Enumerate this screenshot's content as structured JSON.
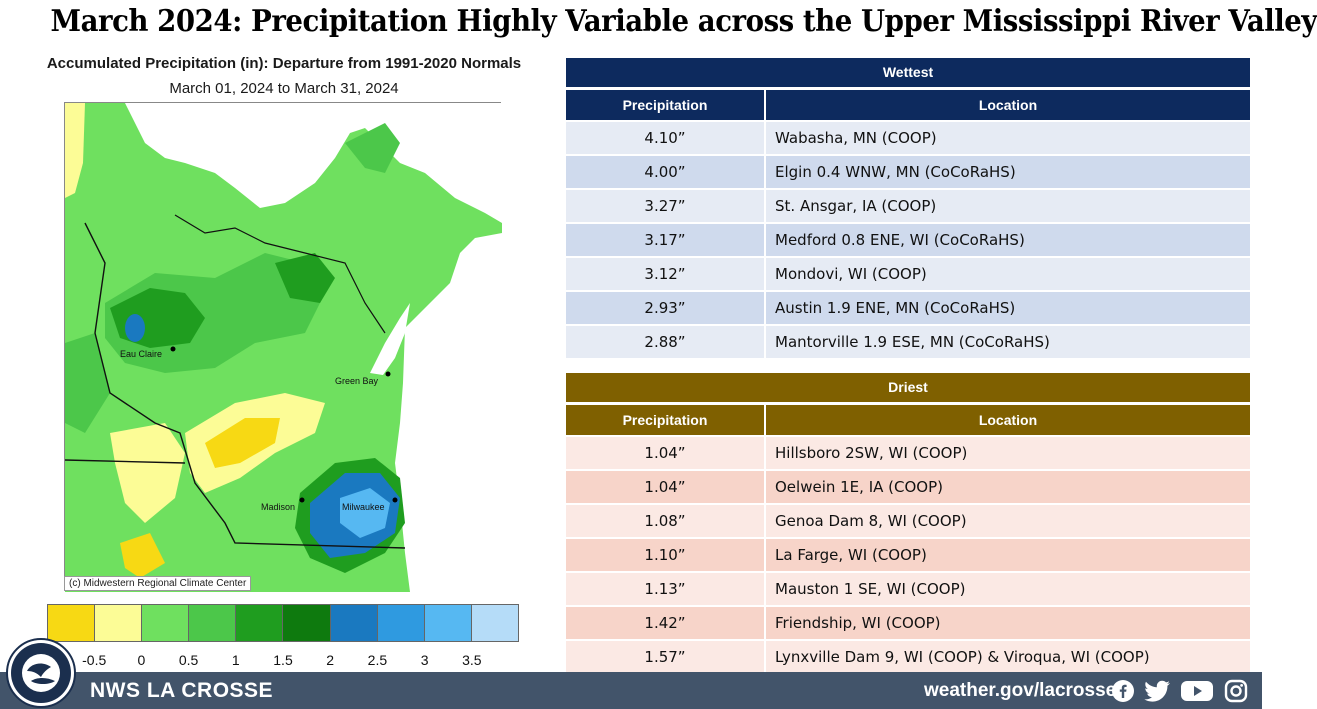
{
  "title": "March 2024:  Precipitation Highly Variable across the Upper Mississippi River Valley",
  "map": {
    "heading": "Accumulated Precipitation (in): Departure from 1991-2020 Normals",
    "subheading": "March 01, 2024 to March 31, 2024",
    "credit": "(c) Midwestern Regional Climate Center",
    "cities": [
      "Eau Claire",
      "Green Bay",
      "Madison",
      "Milwaukee"
    ],
    "legend": {
      "colors": [
        "#f7d914",
        "#fcfc96",
        "#6fe05f",
        "#4cc74a",
        "#1f9d1f",
        "#0e7a0e",
        "#1a79c0",
        "#2f9ae0",
        "#56b8f2",
        "#b5dcf8"
      ],
      "ticks": [
        "-0.5",
        "0",
        "0.5",
        "1",
        "1.5",
        "2",
        "2.5",
        "3",
        "3.5"
      ]
    }
  },
  "wettest": {
    "title": "Wettest",
    "header_bg": "#0d2a5e",
    "row_colors": [
      "#e6ebf4",
      "#cfdaed"
    ],
    "col_precip": "Precipitation",
    "col_location": "Location",
    "rows": [
      {
        "precip": "4.10”",
        "location": "Wabasha, MN (COOP)"
      },
      {
        "precip": "4.00”",
        "location": "Elgin 0.4 WNW, MN (CoCoRaHS)"
      },
      {
        "precip": "3.27”",
        "location": "St. Ansgar, IA (COOP)"
      },
      {
        "precip": "3.17”",
        "location": "Medford 0.8 ENE, WI (CoCoRaHS)"
      },
      {
        "precip": "3.12”",
        "location": "Mondovi, WI (COOP)"
      },
      {
        "precip": "2.93”",
        "location": "Austin 1.9 ENE, MN (CoCoRaHS)"
      },
      {
        "precip": "2.88”",
        "location": "Mantorville 1.9 ESE, MN (CoCoRaHS)"
      }
    ]
  },
  "driest": {
    "title": "Driest",
    "header_bg": "#7f6000",
    "row_colors": [
      "#fbe9e4",
      "#f7d4c9"
    ],
    "col_precip": "Precipitation",
    "col_location": "Location",
    "rows": [
      {
        "precip": "1.04”",
        "location": "Hillsboro 2SW, WI (COOP)"
      },
      {
        "precip": "1.04”",
        "location": "Oelwein 1E, IA (COOP)"
      },
      {
        "precip": "1.08”",
        "location": "Genoa Dam 8, WI (COOP)"
      },
      {
        "precip": "1.10”",
        "location": "La Farge, WI (COOP)"
      },
      {
        "precip": "1.13”",
        "location": "Mauston 1 SE, WI (COOP)"
      },
      {
        "precip": "1.42”",
        "location": "Friendship, WI (COOP)"
      },
      {
        "precip": "1.57”",
        "location": "Lynxville Dam 9, WI (COOP) & Viroqua, WI (COOP)"
      }
    ]
  },
  "footer": {
    "office": "NWS LA CROSSE",
    "url": "weather.gov/lacrosse",
    "bg": "#42546a",
    "icons": [
      "facebook-icon",
      "twitter-icon",
      "youtube-icon",
      "instagram-icon"
    ]
  }
}
